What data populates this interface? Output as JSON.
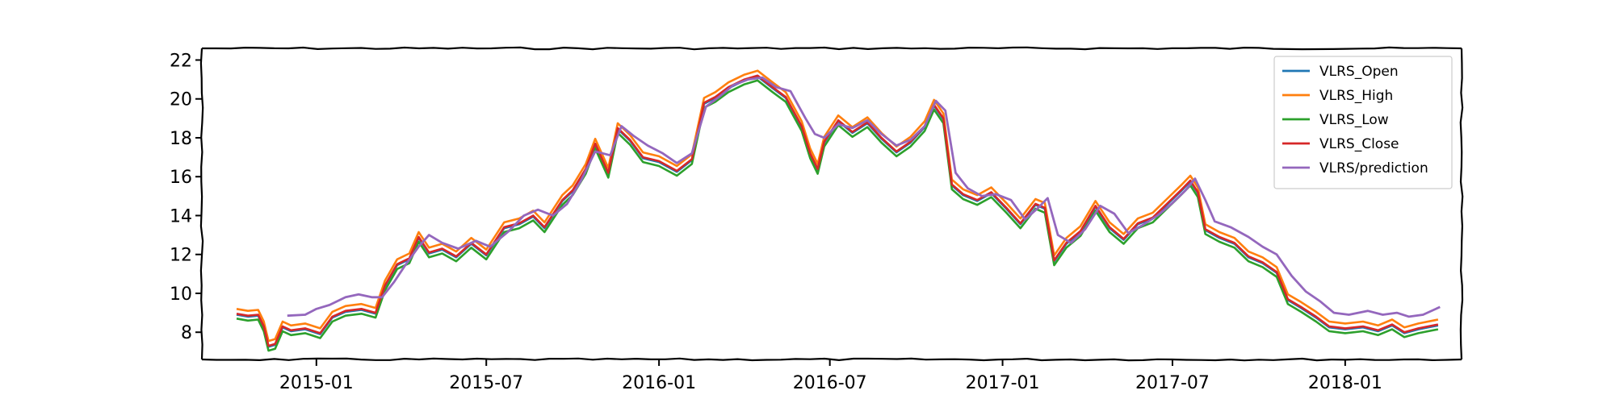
{
  "chart_data": {
    "type": "line",
    "title": "",
    "xlabel": "",
    "ylabel": "",
    "grid": false,
    "legend_position": "top-right",
    "xlim": [
      "2014-09-01",
      "2018-05-05"
    ],
    "ylim": [
      6.6,
      22.6
    ],
    "x_ticks": [
      "2015-01",
      "2015-07",
      "2016-01",
      "2016-07",
      "2017-01",
      "2017-07",
      "2018-01"
    ],
    "y_ticks": [
      8,
      10,
      12,
      14,
      16,
      18,
      20,
      22
    ],
    "colors": {
      "VLRS_Open": "#1f77b4",
      "VLRS_High": "#ff7f0e",
      "VLRS_Low": "#2ca02c",
      "VLRS_Close": "#d62728",
      "VLRS/prediction": "#9467bd"
    },
    "price_series": [
      "VLRS_Open",
      "VLRS_High",
      "VLRS_Low",
      "VLRS_Close"
    ],
    "series": [
      {
        "name": "VLRS_Close",
        "points": [
          [
            "2014-10-08",
            8.95
          ],
          [
            "2014-10-20",
            8.85
          ],
          [
            "2014-10-31",
            8.9
          ],
          [
            "2014-11-06",
            8.3
          ],
          [
            "2014-11-11",
            7.3
          ],
          [
            "2014-11-18",
            7.4
          ],
          [
            "2014-11-26",
            8.3
          ],
          [
            "2014-12-05",
            8.1
          ],
          [
            "2014-12-20",
            8.2
          ],
          [
            "2015-01-05",
            7.95
          ],
          [
            "2015-01-18",
            8.8
          ],
          [
            "2015-02-01",
            9.1
          ],
          [
            "2015-02-18",
            9.2
          ],
          [
            "2015-03-05",
            9.0
          ],
          [
            "2015-03-15",
            10.4
          ],
          [
            "2015-03-28",
            11.5
          ],
          [
            "2015-04-10",
            11.8
          ],
          [
            "2015-04-20",
            12.9
          ],
          [
            "2015-05-01",
            12.1
          ],
          [
            "2015-05-15",
            12.3
          ],
          [
            "2015-05-30",
            11.9
          ],
          [
            "2015-06-15",
            12.6
          ],
          [
            "2015-07-01",
            12.0
          ],
          [
            "2015-07-20",
            13.4
          ],
          [
            "2015-08-05",
            13.6
          ],
          [
            "2015-08-20",
            14.0
          ],
          [
            "2015-09-01",
            13.4
          ],
          [
            "2015-09-20",
            14.8
          ],
          [
            "2015-10-01",
            15.3
          ],
          [
            "2015-10-15",
            16.4
          ],
          [
            "2015-10-25",
            17.7
          ],
          [
            "2015-11-08",
            16.2
          ],
          [
            "2015-11-18",
            18.5
          ],
          [
            "2015-12-01",
            17.9
          ],
          [
            "2015-12-15",
            17.0
          ],
          [
            "2016-01-01",
            16.8
          ],
          [
            "2016-01-20",
            16.3
          ],
          [
            "2016-02-05",
            16.9
          ],
          [
            "2016-02-18",
            19.8
          ],
          [
            "2016-03-01",
            20.1
          ],
          [
            "2016-03-15",
            20.6
          ],
          [
            "2016-04-01",
            21.0
          ],
          [
            "2016-04-15",
            21.2
          ],
          [
            "2016-05-01",
            20.6
          ],
          [
            "2016-05-15",
            20.1
          ],
          [
            "2016-06-01",
            18.6
          ],
          [
            "2016-06-10",
            17.2
          ],
          [
            "2016-06-18",
            16.4
          ],
          [
            "2016-06-25",
            17.8
          ],
          [
            "2016-07-10",
            18.9
          ],
          [
            "2016-07-25",
            18.3
          ],
          [
            "2016-08-10",
            18.8
          ],
          [
            "2016-08-25",
            18.0
          ],
          [
            "2016-09-10",
            17.3
          ],
          [
            "2016-09-25",
            17.8
          ],
          [
            "2016-10-10",
            18.6
          ],
          [
            "2016-10-20",
            19.7
          ],
          [
            "2016-10-30",
            19.0
          ],
          [
            "2016-11-08",
            15.6
          ],
          [
            "2016-11-20",
            15.1
          ],
          [
            "2016-12-05",
            14.8
          ],
          [
            "2016-12-20",
            15.2
          ],
          [
            "2017-01-05",
            14.4
          ],
          [
            "2017-01-20",
            13.6
          ],
          [
            "2017-02-05",
            14.6
          ],
          [
            "2017-02-15",
            14.4
          ],
          [
            "2017-02-25",
            11.7
          ],
          [
            "2017-03-10",
            12.6
          ],
          [
            "2017-03-25",
            13.2
          ],
          [
            "2017-04-10",
            14.5
          ],
          [
            "2017-04-25",
            13.4
          ],
          [
            "2017-05-10",
            12.8
          ],
          [
            "2017-05-25",
            13.6
          ],
          [
            "2017-06-10",
            13.9
          ],
          [
            "2017-06-25",
            14.6
          ],
          [
            "2017-07-10",
            15.3
          ],
          [
            "2017-07-20",
            15.8
          ],
          [
            "2017-07-28",
            15.2
          ],
          [
            "2017-08-05",
            13.3
          ],
          [
            "2017-08-20",
            12.9
          ],
          [
            "2017-09-05",
            12.6
          ],
          [
            "2017-09-20",
            11.9
          ],
          [
            "2017-10-05",
            11.6
          ],
          [
            "2017-10-20",
            11.1
          ],
          [
            "2017-11-01",
            9.7
          ],
          [
            "2017-11-15",
            9.3
          ],
          [
            "2017-12-01",
            8.8
          ],
          [
            "2017-12-15",
            8.3
          ],
          [
            "2018-01-01",
            8.2
          ],
          [
            "2018-01-20",
            8.3
          ],
          [
            "2018-02-05",
            8.1
          ],
          [
            "2018-02-20",
            8.4
          ],
          [
            "2018-03-05",
            8.0
          ],
          [
            "2018-03-20",
            8.2
          ],
          [
            "2018-04-10",
            8.4
          ]
        ]
      },
      {
        "name": "VLRS/prediction",
        "points": [
          [
            "2014-12-01",
            8.85
          ],
          [
            "2014-12-20",
            8.9
          ],
          [
            "2015-01-01",
            9.2
          ],
          [
            "2015-01-15",
            9.4
          ],
          [
            "2015-02-01",
            9.8
          ],
          [
            "2015-02-15",
            9.95
          ],
          [
            "2015-03-01",
            9.8
          ],
          [
            "2015-03-12",
            9.8
          ],
          [
            "2015-03-25",
            10.6
          ],
          [
            "2015-04-05",
            11.4
          ],
          [
            "2015-04-20",
            12.4
          ],
          [
            "2015-05-01",
            13.0
          ],
          [
            "2015-05-15",
            12.6
          ],
          [
            "2015-06-01",
            12.3
          ],
          [
            "2015-06-20",
            12.7
          ],
          [
            "2015-07-05",
            12.4
          ],
          [
            "2015-07-25",
            13.2
          ],
          [
            "2015-08-10",
            14.0
          ],
          [
            "2015-08-25",
            14.3
          ],
          [
            "2015-09-10",
            14.0
          ],
          [
            "2015-09-25",
            14.6
          ],
          [
            "2015-10-10",
            15.8
          ],
          [
            "2015-10-25",
            17.3
          ],
          [
            "2015-11-10",
            17.1
          ],
          [
            "2015-11-22",
            18.6
          ],
          [
            "2015-12-05",
            18.1
          ],
          [
            "2015-12-20",
            17.6
          ],
          [
            "2016-01-05",
            17.2
          ],
          [
            "2016-01-20",
            16.7
          ],
          [
            "2016-02-05",
            17.2
          ],
          [
            "2016-02-20",
            19.6
          ],
          [
            "2016-03-05",
            20.1
          ],
          [
            "2016-03-20",
            20.7
          ],
          [
            "2016-04-05",
            21.0
          ],
          [
            "2016-04-20",
            21.1
          ],
          [
            "2016-05-05",
            20.6
          ],
          [
            "2016-05-20",
            20.4
          ],
          [
            "2016-06-05",
            19.0
          ],
          [
            "2016-06-15",
            18.2
          ],
          [
            "2016-06-25",
            18.0
          ],
          [
            "2016-07-10",
            18.7
          ],
          [
            "2016-07-25",
            18.5
          ],
          [
            "2016-08-10",
            18.9
          ],
          [
            "2016-08-25",
            18.2
          ],
          [
            "2016-09-10",
            17.6
          ],
          [
            "2016-09-25",
            17.9
          ],
          [
            "2016-10-10",
            18.6
          ],
          [
            "2016-10-22",
            19.9
          ],
          [
            "2016-11-01",
            19.4
          ],
          [
            "2016-11-12",
            16.2
          ],
          [
            "2016-11-25",
            15.4
          ],
          [
            "2016-12-10",
            15.0
          ],
          [
            "2016-12-25",
            15.1
          ],
          [
            "2017-01-10",
            14.8
          ],
          [
            "2017-01-25",
            13.8
          ],
          [
            "2017-02-08",
            14.4
          ],
          [
            "2017-02-18",
            14.9
          ],
          [
            "2017-03-01",
            13.0
          ],
          [
            "2017-03-15",
            12.6
          ],
          [
            "2017-03-30",
            13.3
          ],
          [
            "2017-04-15",
            14.5
          ],
          [
            "2017-04-30",
            14.1
          ],
          [
            "2017-05-15",
            13.1
          ],
          [
            "2017-05-30",
            13.5
          ],
          [
            "2017-06-15",
            14.0
          ],
          [
            "2017-06-30",
            14.6
          ],
          [
            "2017-07-15",
            15.3
          ],
          [
            "2017-07-25",
            15.9
          ],
          [
            "2017-08-05",
            14.8
          ],
          [
            "2017-08-15",
            13.7
          ],
          [
            "2017-09-01",
            13.4
          ],
          [
            "2017-09-20",
            12.9
          ],
          [
            "2017-10-05",
            12.4
          ],
          [
            "2017-10-20",
            12.0
          ],
          [
            "2017-11-05",
            10.9
          ],
          [
            "2017-11-20",
            10.1
          ],
          [
            "2017-12-05",
            9.6
          ],
          [
            "2017-12-20",
            9.0
          ],
          [
            "2018-01-05",
            8.9
          ],
          [
            "2018-01-25",
            9.1
          ],
          [
            "2018-02-10",
            8.9
          ],
          [
            "2018-02-25",
            9.0
          ],
          [
            "2018-03-10",
            8.8
          ],
          [
            "2018-03-25",
            8.9
          ],
          [
            "2018-04-12",
            9.3
          ]
        ]
      }
    ]
  }
}
